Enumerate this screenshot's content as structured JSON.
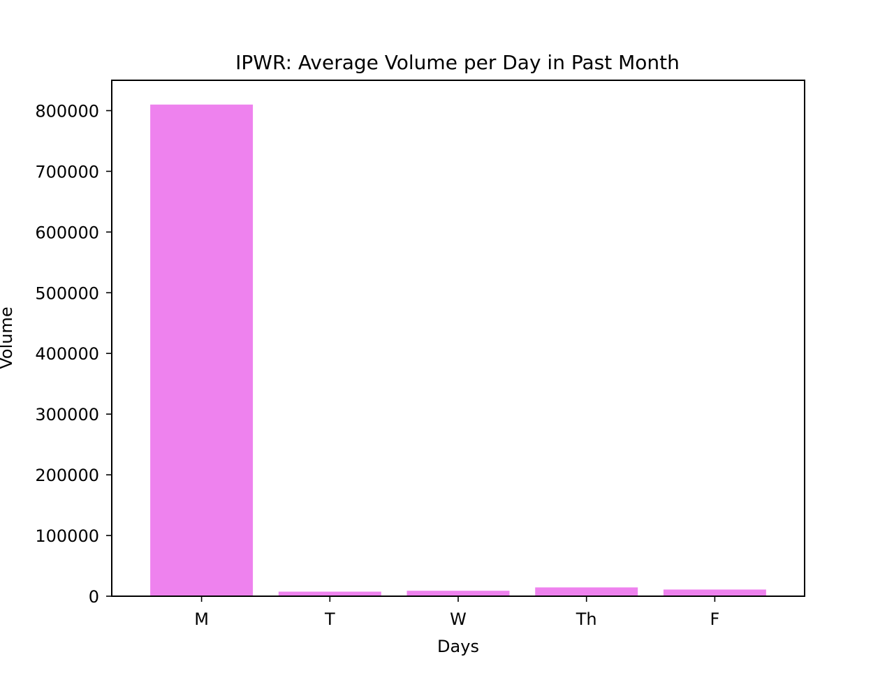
{
  "chart_data": {
    "type": "bar",
    "title": "IPWR: Average Volume per Day in Past Month",
    "xlabel": "Days",
    "ylabel": "Volume",
    "categories": [
      "M",
      "T",
      "W",
      "Th",
      "F"
    ],
    "values": [
      810000,
      7500,
      9000,
      14500,
      11000
    ],
    "ylim": [
      0,
      850000
    ],
    "yticks": [
      0,
      100000,
      200000,
      300000,
      400000,
      500000,
      600000,
      700000,
      800000
    ],
    "ytick_labels": [
      "0",
      "100000",
      "200000",
      "300000",
      "400000",
      "500000",
      "600000",
      "700000",
      "800000"
    ],
    "grid": false,
    "legend": "none",
    "bar_color": "#ee82ee"
  }
}
